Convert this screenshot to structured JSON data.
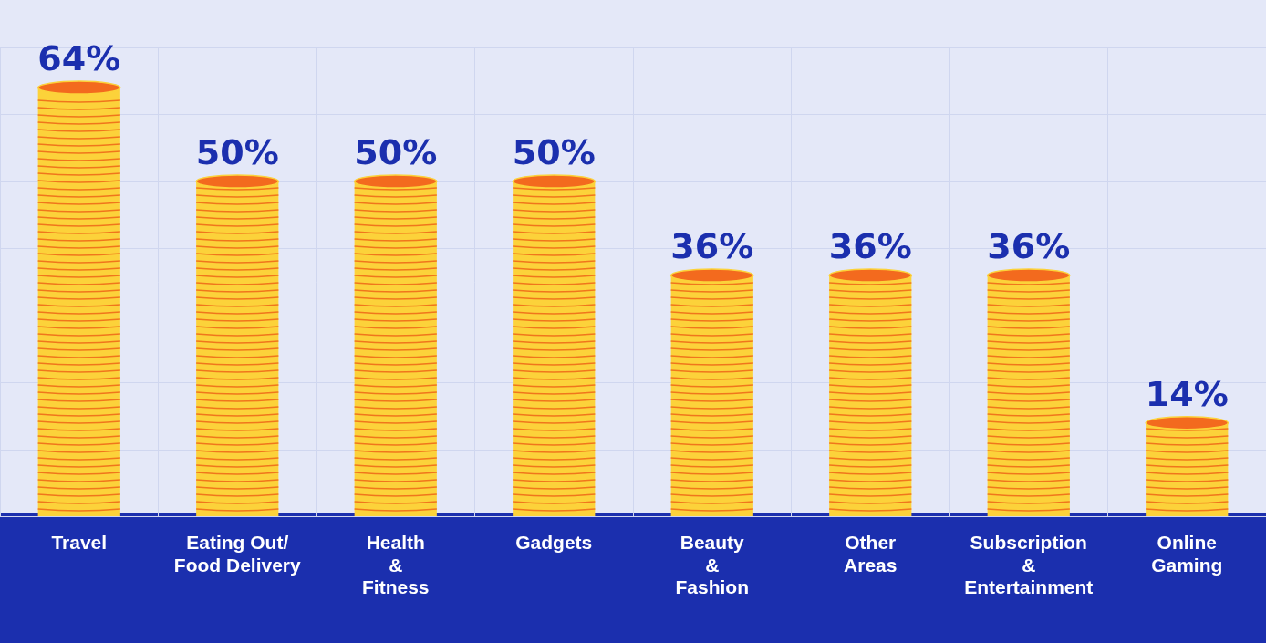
{
  "chart_data": {
    "type": "bar",
    "categories": [
      "Travel",
      "Eating Out/ Food Delivery",
      "Health & Fitness",
      "Gadgets",
      "Beauty & Fashion",
      "Other Areas",
      "Subscription & Entertainment",
      "Online Gaming"
    ],
    "values": [
      64,
      50,
      50,
      50,
      36,
      36,
      36,
      14
    ],
    "value_labels": [
      "64%",
      "50%",
      "50%",
      "50%",
      "36%",
      "36%",
      "36%",
      "14%"
    ],
    "data_labels": true,
    "color": "#fcd23a",
    "ylim": [
      0,
      70
    ],
    "yticks": [
      0,
      10,
      20,
      30,
      40,
      50,
      60,
      70
    ],
    "grid": true,
    "tick_labels": "x"
  }
}
